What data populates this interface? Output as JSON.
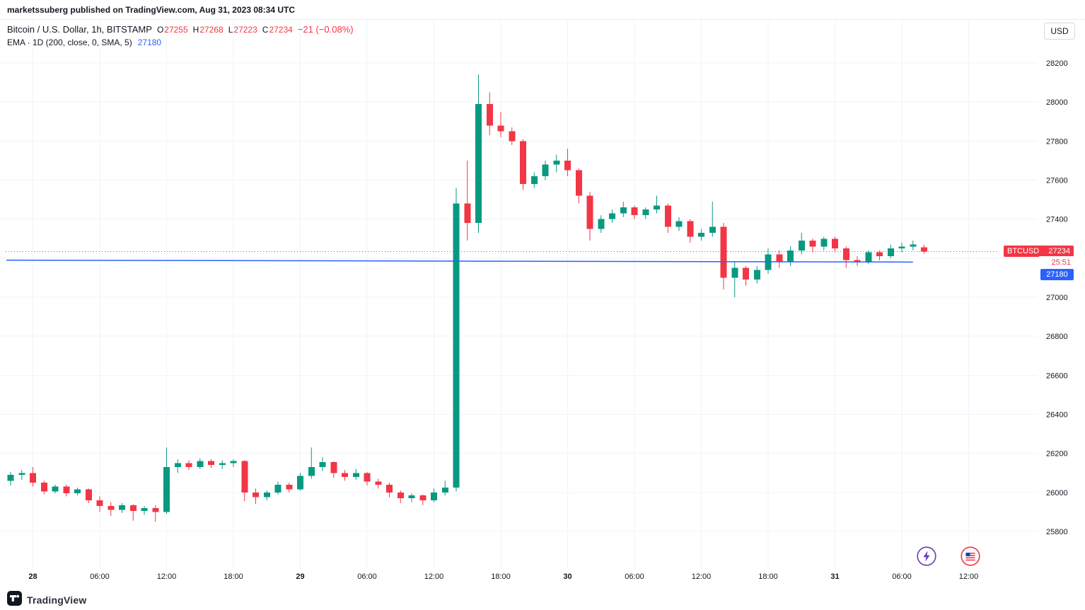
{
  "attribution": "marketssuberg published on TradingView.com, Aug 31, 2023 08:34 UTC",
  "toolbar": {
    "currency_label": "USD"
  },
  "header": {
    "symbol": "Bitcoin / U.S. Dollar, 1h, BITSTAMP",
    "ohlc": [
      {
        "label": "O",
        "value": "27255"
      },
      {
        "label": "H",
        "value": "27268"
      },
      {
        "label": "L",
        "value": "27223"
      },
      {
        "label": "C",
        "value": "27234"
      }
    ],
    "change": "−21 (−0.08%)",
    "indicator": {
      "label": "EMA · 1D (200, close, 0, SMA, 5)",
      "value": "27180"
    }
  },
  "price_scale": {
    "symbol_badge": {
      "symbol": "BTCUSD",
      "price": "27234"
    },
    "countdown": "25:51",
    "ema_badge": "27180"
  },
  "footer": {
    "brand": "TradingView"
  },
  "colors": {
    "up": "#089981",
    "down": "#f23645",
    "ema": "#2962ff",
    "grid": "#f0f3fa",
    "text": "#131722"
  },
  "chart_data": {
    "type": "candlestick",
    "title": "Bitcoin / U.S. Dollar, 1h, BITSTAMP",
    "symbol": "BTCUSD",
    "exchange": "BITSTAMP",
    "interval": "1h",
    "ylim": [
      25600,
      28420
    ],
    "price_ticks": [
      28200,
      28000,
      27800,
      27600,
      27400,
      27200,
      27000,
      26800,
      26600,
      26400,
      26200,
      26000,
      25800
    ],
    "time_ticks": [
      {
        "i": 2,
        "label": "28",
        "major": true
      },
      {
        "i": 8,
        "label": "06:00"
      },
      {
        "i": 14,
        "label": "12:00"
      },
      {
        "i": 20,
        "label": "18:00"
      },
      {
        "i": 26,
        "label": "29",
        "major": true
      },
      {
        "i": 32,
        "label": "06:00"
      },
      {
        "i": 38,
        "label": "12:00"
      },
      {
        "i": 44,
        "label": "18:00"
      },
      {
        "i": 50,
        "label": "30",
        "major": true
      },
      {
        "i": 56,
        "label": "06:00"
      },
      {
        "i": 62,
        "label": "12:00"
      },
      {
        "i": 68,
        "label": "18:00"
      },
      {
        "i": 74,
        "label": "31",
        "major": true
      },
      {
        "i": 80,
        "label": "06:00"
      },
      {
        "i": 86,
        "label": "12:00"
      }
    ],
    "current_price": 27234,
    "change": -21,
    "change_pct": -0.08,
    "ema": {
      "period": 200,
      "timeframe": "1D",
      "value": 27180,
      "series_start": 27190,
      "series_end": 27180
    },
    "candles_columns": [
      "time",
      "open",
      "high",
      "low",
      "close"
    ],
    "candles": [
      [
        "08-27 22:00",
        26060,
        26105,
        26035,
        26090
      ],
      [
        "08-27 23:00",
        26090,
        26115,
        26065,
        26100
      ],
      [
        "08-28 00:00",
        26100,
        26130,
        26030,
        26050
      ],
      [
        "08-28 01:00",
        26050,
        26060,
        25990,
        26005
      ],
      [
        "08-28 02:00",
        26005,
        26040,
        25995,
        26030
      ],
      [
        "08-28 03:00",
        26030,
        26040,
        25980,
        25995
      ],
      [
        "08-28 04:00",
        25995,
        26025,
        25985,
        26015
      ],
      [
        "08-28 05:00",
        26015,
        26020,
        25945,
        25960
      ],
      [
        "08-28 06:00",
        25960,
        25980,
        25900,
        25930
      ],
      [
        "08-28 07:00",
        25930,
        25950,
        25880,
        25910
      ],
      [
        "08-28 08:00",
        25910,
        25945,
        25895,
        25935
      ],
      [
        "08-28 09:00",
        25935,
        25940,
        25855,
        25905
      ],
      [
        "08-28 10:00",
        25905,
        25930,
        25885,
        25920
      ],
      [
        "08-28 11:00",
        25920,
        25935,
        25850,
        25900
      ],
      [
        "08-28 12:00",
        25900,
        26230,
        25890,
        26130
      ],
      [
        "08-28 13:00",
        26130,
        26170,
        26100,
        26150
      ],
      [
        "08-28 14:00",
        26150,
        26165,
        26115,
        26130
      ],
      [
        "08-28 15:00",
        26130,
        26175,
        26120,
        26160
      ],
      [
        "08-28 16:00",
        26160,
        26170,
        26125,
        26140
      ],
      [
        "08-28 17:00",
        26140,
        26165,
        26120,
        26150
      ],
      [
        "08-28 18:00",
        26150,
        26170,
        26130,
        26160
      ],
      [
        "08-28 19:00",
        26160,
        26165,
        25955,
        26000
      ],
      [
        "08-28 20:00",
        26000,
        26020,
        25940,
        25975
      ],
      [
        "08-28 21:00",
        25975,
        26010,
        25960,
        26000
      ],
      [
        "08-28 22:00",
        26000,
        26055,
        25990,
        26040
      ],
      [
        "08-28 23:00",
        26040,
        26050,
        26000,
        26015
      ],
      [
        "08-29 00:00",
        26015,
        26100,
        26010,
        26085
      ],
      [
        "08-29 01:00",
        26085,
        26230,
        26070,
        26130
      ],
      [
        "08-29 02:00",
        26130,
        26180,
        26110,
        26155
      ],
      [
        "08-29 03:00",
        26155,
        26160,
        26075,
        26100
      ],
      [
        "08-29 04:00",
        26100,
        26115,
        26060,
        26080
      ],
      [
        "08-29 05:00",
        26080,
        26120,
        26065,
        26100
      ],
      [
        "08-29 06:00",
        26100,
        26105,
        26035,
        26055
      ],
      [
        "08-29 07:00",
        26055,
        26070,
        26020,
        26040
      ],
      [
        "08-29 08:00",
        26040,
        26050,
        25975,
        26000
      ],
      [
        "08-29 09:00",
        26000,
        26010,
        25945,
        25970
      ],
      [
        "08-29 10:00",
        25970,
        25995,
        25950,
        25985
      ],
      [
        "08-29 11:00",
        25985,
        25990,
        25935,
        25960
      ],
      [
        "08-29 12:00",
        25960,
        26020,
        25950,
        26000
      ],
      [
        "08-29 13:00",
        26000,
        26060,
        25985,
        26025
      ],
      [
        "08-29 14:00",
        26025,
        27560,
        26005,
        27480
      ],
      [
        "08-29 15:00",
        27480,
        27700,
        27290,
        27380
      ],
      [
        "08-29 16:00",
        27380,
        28140,
        27330,
        27990
      ],
      [
        "08-29 17:00",
        27990,
        28050,
        27830,
        27880
      ],
      [
        "08-29 18:00",
        27880,
        27950,
        27820,
        27850
      ],
      [
        "08-29 19:00",
        27850,
        27870,
        27780,
        27800
      ],
      [
        "08-29 20:00",
        27800,
        27810,
        27550,
        27580
      ],
      [
        "08-29 21:00",
        27580,
        27640,
        27560,
        27620
      ],
      [
        "08-29 22:00",
        27620,
        27700,
        27600,
        27680
      ],
      [
        "08-29 23:00",
        27680,
        27730,
        27640,
        27700
      ],
      [
        "08-30 00:00",
        27700,
        27760,
        27620,
        27650
      ],
      [
        "08-30 01:00",
        27650,
        27660,
        27480,
        27520
      ],
      [
        "08-30 02:00",
        27520,
        27540,
        27290,
        27350
      ],
      [
        "08-30 03:00",
        27350,
        27420,
        27330,
        27400
      ],
      [
        "08-30 04:00",
        27400,
        27450,
        27380,
        27430
      ],
      [
        "08-30 05:00",
        27430,
        27490,
        27410,
        27460
      ],
      [
        "08-30 06:00",
        27460,
        27470,
        27400,
        27420
      ],
      [
        "08-30 07:00",
        27420,
        27460,
        27400,
        27450
      ],
      [
        "08-30 08:00",
        27450,
        27520,
        27430,
        27470
      ],
      [
        "08-30 09:00",
        27470,
        27480,
        27330,
        27360
      ],
      [
        "08-30 10:00",
        27360,
        27410,
        27340,
        27390
      ],
      [
        "08-30 11:00",
        27390,
        27400,
        27280,
        27310
      ],
      [
        "08-30 12:00",
        27310,
        27350,
        27290,
        27330
      ],
      [
        "08-30 13:00",
        27330,
        27490,
        27310,
        27360
      ],
      [
        "08-30 14:00",
        27360,
        27380,
        27040,
        27100
      ],
      [
        "08-30 15:00",
        27100,
        27180,
        27000,
        27150
      ],
      [
        "08-30 16:00",
        27150,
        27160,
        27060,
        27090
      ],
      [
        "08-30 17:00",
        27090,
        27160,
        27070,
        27140
      ],
      [
        "08-30 18:00",
        27140,
        27250,
        27120,
        27220
      ],
      [
        "08-30 19:00",
        27220,
        27240,
        27150,
        27180
      ],
      [
        "08-30 20:00",
        27180,
        27260,
        27160,
        27240
      ],
      [
        "08-30 21:00",
        27240,
        27330,
        27220,
        27290
      ],
      [
        "08-30 22:00",
        27290,
        27300,
        27230,
        27260
      ],
      [
        "08-30 23:00",
        27260,
        27310,
        27240,
        27300
      ],
      [
        "08-31 00:00",
        27300,
        27310,
        27230,
        27250
      ],
      [
        "08-31 01:00",
        27250,
        27260,
        27150,
        27190
      ],
      [
        "08-31 02:00",
        27190,
        27210,
        27160,
        27180
      ],
      [
        "08-31 03:00",
        27180,
        27240,
        27170,
        27230
      ],
      [
        "08-31 04:00",
        27230,
        27240,
        27190,
        27210
      ],
      [
        "08-31 05:00",
        27210,
        27270,
        27200,
        27250
      ],
      [
        "08-31 06:00",
        27250,
        27280,
        27230,
        27260
      ],
      [
        "08-31 07:00",
        27260,
        27290,
        27240,
        27270
      ],
      [
        "08-31 08:00",
        27255,
        27268,
        27223,
        27234
      ]
    ]
  }
}
